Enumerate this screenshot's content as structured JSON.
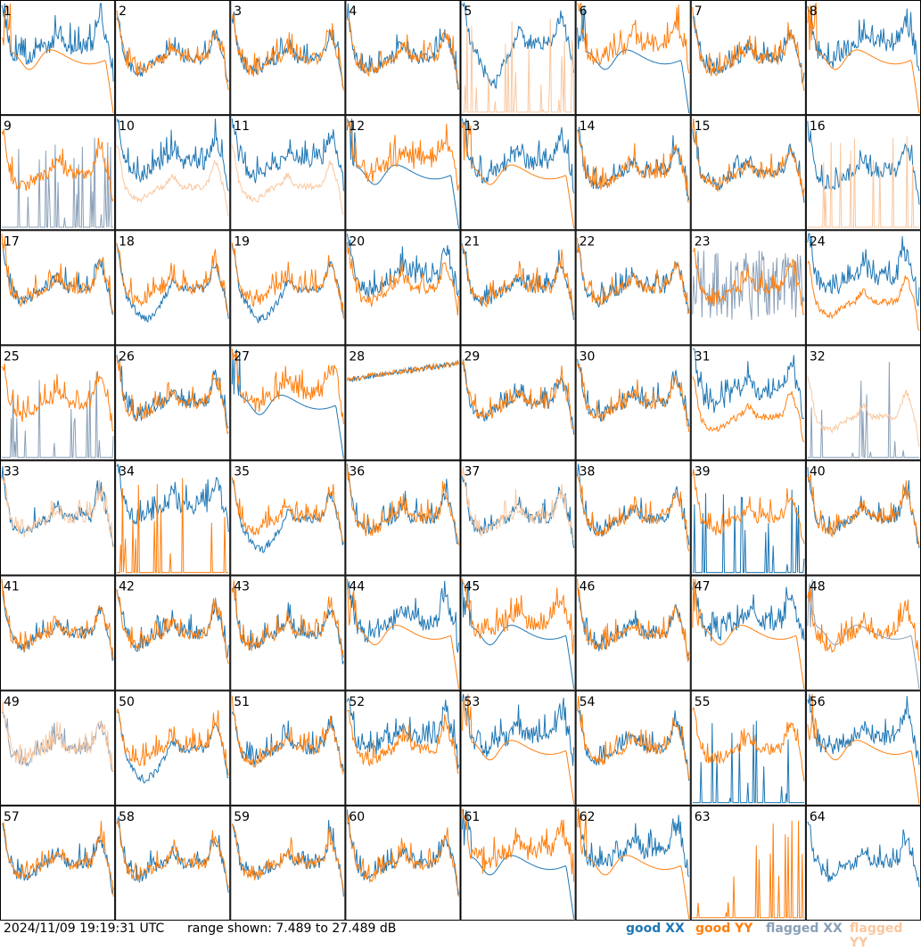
{
  "footer": {
    "timestamp": "2024/11/09 19:19:31 UTC",
    "range_text": "range shown: 7.489 to 27.489 dB"
  },
  "legend": [
    {
      "key": "good_xx",
      "label": "good XX",
      "color": "#1f77b4"
    },
    {
      "key": "good_yy",
      "label": "good YY",
      "color": "#ff7f0e"
    },
    {
      "key": "flagged_xx",
      "label": "flagged XX",
      "color": "#8aa0b8"
    },
    {
      "key": "flagged_yy",
      "label": "flagged YY",
      "color": "#f9c79f"
    }
  ],
  "chart_data": {
    "type": "line",
    "title": "",
    "xlabel": "",
    "ylabel": "",
    "ylim": [
      7.489,
      27.489
    ],
    "grid_rows": 8,
    "grid_cols": 8,
    "panels": [
      {
        "id": "1",
        "xx": "good",
        "yy": "good",
        "xx_shape": "normal_high",
        "yy_shape": "droop"
      },
      {
        "id": "2",
        "xx": "good",
        "yy": "good",
        "xx_shape": "normal",
        "yy_shape": "normal"
      },
      {
        "id": "3",
        "xx": "good",
        "yy": "good",
        "xx_shape": "normal",
        "yy_shape": "normal"
      },
      {
        "id": "4",
        "xx": "good",
        "yy": "good",
        "xx_shape": "normal",
        "yy_shape": "normal"
      },
      {
        "id": "5",
        "xx": "good",
        "yy": "flagged",
        "xx_shape": "dip_high",
        "yy_shape": "spikes"
      },
      {
        "id": "6",
        "xx": "good",
        "yy": "good",
        "xx_shape": "droop",
        "yy_shape": "normal_high"
      },
      {
        "id": "7",
        "xx": "good",
        "yy": "good",
        "xx_shape": "normal",
        "yy_shape": "normal"
      },
      {
        "id": "8",
        "xx": "good",
        "yy": "good",
        "xx_shape": "normal_high",
        "yy_shape": "droop"
      },
      {
        "id": "9",
        "xx": "flagged",
        "yy": "good",
        "xx_shape": "spikes",
        "yy_shape": "normal"
      },
      {
        "id": "10",
        "xx": "good",
        "yy": "flagged",
        "xx_shape": "normal_high",
        "yy_shape": "normal_low"
      },
      {
        "id": "11",
        "xx": "good",
        "yy": "flagged",
        "xx_shape": "normal_high",
        "yy_shape": "normal_low"
      },
      {
        "id": "12",
        "xx": "good",
        "yy": "good",
        "xx_shape": "droop",
        "yy_shape": "normal_high"
      },
      {
        "id": "13",
        "xx": "good",
        "yy": "good",
        "xx_shape": "normal_high",
        "yy_shape": "droop"
      },
      {
        "id": "14",
        "xx": "good",
        "yy": "good",
        "xx_shape": "normal",
        "yy_shape": "normal"
      },
      {
        "id": "15",
        "xx": "good",
        "yy": "good",
        "xx_shape": "normal",
        "yy_shape": "normal"
      },
      {
        "id": "16",
        "xx": "good",
        "yy": "flagged",
        "xx_shape": "normal",
        "yy_shape": "spikes"
      },
      {
        "id": "17",
        "xx": "good",
        "yy": "good",
        "xx_shape": "normal",
        "yy_shape": "normal"
      },
      {
        "id": "18",
        "xx": "good",
        "yy": "good",
        "xx_shape": "dip",
        "yy_shape": "normal"
      },
      {
        "id": "19",
        "xx": "good",
        "yy": "good",
        "xx_shape": "dip",
        "yy_shape": "normal"
      },
      {
        "id": "20",
        "xx": "good",
        "yy": "good",
        "xx_shape": "normal_high",
        "yy_shape": "normal"
      },
      {
        "id": "21",
        "xx": "good",
        "yy": "good",
        "xx_shape": "normal",
        "yy_shape": "normal"
      },
      {
        "id": "22",
        "xx": "good",
        "yy": "good",
        "xx_shape": "normal",
        "yy_shape": "normal"
      },
      {
        "id": "23",
        "xx": "flagged",
        "yy": "good",
        "xx_shape": "noise",
        "yy_shape": "normal"
      },
      {
        "id": "24",
        "xx": "good",
        "yy": "good",
        "xx_shape": "normal_high",
        "yy_shape": "normal_low"
      },
      {
        "id": "25",
        "xx": "flagged",
        "yy": "good",
        "xx_shape": "spikes",
        "yy_shape": "normal"
      },
      {
        "id": "26",
        "xx": "good",
        "yy": "good",
        "xx_shape": "normal",
        "yy_shape": "normal"
      },
      {
        "id": "27",
        "xx": "good",
        "yy": "good",
        "xx_shape": "droop",
        "yy_shape": "normal_high"
      },
      {
        "id": "28",
        "xx": "good",
        "yy": "good",
        "xx_shape": "flat_high",
        "yy_shape": "flat_high"
      },
      {
        "id": "29",
        "xx": "good",
        "yy": "good",
        "xx_shape": "normal",
        "yy_shape": "normal"
      },
      {
        "id": "30",
        "xx": "good",
        "yy": "good",
        "xx_shape": "normal",
        "yy_shape": "normal"
      },
      {
        "id": "31",
        "xx": "good",
        "yy": "good",
        "xx_shape": "normal_high",
        "yy_shape": "normal_low"
      },
      {
        "id": "32",
        "xx": "flagged",
        "yy": "flagged",
        "xx_shape": "spikes",
        "yy_shape": "normal_low"
      },
      {
        "id": "33",
        "xx": "good",
        "yy": "flagged",
        "xx_shape": "normal",
        "yy_shape": "normal"
      },
      {
        "id": "34",
        "xx": "good",
        "yy": "good",
        "xx_shape": "normal_high",
        "yy_shape": "spikes"
      },
      {
        "id": "35",
        "xx": "good",
        "yy": "good",
        "xx_shape": "dip",
        "yy_shape": "normal"
      },
      {
        "id": "36",
        "xx": "good",
        "yy": "good",
        "xx_shape": "normal",
        "yy_shape": "normal"
      },
      {
        "id": "37",
        "xx": "good",
        "yy": "flagged",
        "xx_shape": "normal",
        "yy_shape": "normal"
      },
      {
        "id": "38",
        "xx": "good",
        "yy": "good",
        "xx_shape": "normal",
        "yy_shape": "normal"
      },
      {
        "id": "39",
        "xx": "good",
        "yy": "good",
        "xx_shape": "spikes",
        "yy_shape": "normal"
      },
      {
        "id": "40",
        "xx": "good",
        "yy": "good",
        "xx_shape": "normal",
        "yy_shape": "normal"
      },
      {
        "id": "41",
        "xx": "good",
        "yy": "good",
        "xx_shape": "normal",
        "yy_shape": "normal"
      },
      {
        "id": "42",
        "xx": "good",
        "yy": "good",
        "xx_shape": "normal",
        "yy_shape": "normal"
      },
      {
        "id": "43",
        "xx": "good",
        "yy": "good",
        "xx_shape": "normal",
        "yy_shape": "normal"
      },
      {
        "id": "44",
        "xx": "good",
        "yy": "good",
        "xx_shape": "normal_high",
        "yy_shape": "droop"
      },
      {
        "id": "45",
        "xx": "good",
        "yy": "good",
        "xx_shape": "droop",
        "yy_shape": "normal_high"
      },
      {
        "id": "46",
        "xx": "good",
        "yy": "good",
        "xx_shape": "normal",
        "yy_shape": "normal"
      },
      {
        "id": "47",
        "xx": "good",
        "yy": "good",
        "xx_shape": "normal_high",
        "yy_shape": "droop"
      },
      {
        "id": "48",
        "xx": "flagged",
        "yy": "good",
        "xx_shape": "droop",
        "yy_shape": "normal"
      },
      {
        "id": "49",
        "xx": "flagged",
        "yy": "flagged",
        "xx_shape": "normal",
        "yy_shape": "normal"
      },
      {
        "id": "50",
        "xx": "good",
        "yy": "good",
        "xx_shape": "dip",
        "yy_shape": "normal"
      },
      {
        "id": "51",
        "xx": "good",
        "yy": "good",
        "xx_shape": "normal",
        "yy_shape": "normal"
      },
      {
        "id": "52",
        "xx": "good",
        "yy": "good",
        "xx_shape": "normal_high",
        "yy_shape": "normal"
      },
      {
        "id": "53",
        "xx": "good",
        "yy": "good",
        "xx_shape": "normal_high",
        "yy_shape": "droop"
      },
      {
        "id": "54",
        "xx": "good",
        "yy": "good",
        "xx_shape": "normal",
        "yy_shape": "normal"
      },
      {
        "id": "55",
        "xx": "good",
        "yy": "good",
        "xx_shape": "spikes",
        "yy_shape": "normal"
      },
      {
        "id": "56",
        "xx": "good",
        "yy": "good",
        "xx_shape": "normal_high",
        "yy_shape": "droop"
      },
      {
        "id": "57",
        "xx": "good",
        "yy": "good",
        "xx_shape": "normal",
        "yy_shape": "normal"
      },
      {
        "id": "58",
        "xx": "good",
        "yy": "good",
        "xx_shape": "normal",
        "yy_shape": "normal"
      },
      {
        "id": "59",
        "xx": "good",
        "yy": "good",
        "xx_shape": "normal",
        "yy_shape": "normal"
      },
      {
        "id": "60",
        "xx": "good",
        "yy": "good",
        "xx_shape": "normal",
        "yy_shape": "normal"
      },
      {
        "id": "61",
        "xx": "good",
        "yy": "good",
        "xx_shape": "droop",
        "yy_shape": "normal_high"
      },
      {
        "id": "62",
        "xx": "good",
        "yy": "good",
        "xx_shape": "normal_high",
        "yy_shape": "droop"
      },
      {
        "id": "63",
        "xx": "none",
        "yy": "good",
        "xx_shape": "none",
        "yy_shape": "spikes"
      },
      {
        "id": "64",
        "xx": "good",
        "yy": "none",
        "xx_shape": "normal",
        "yy_shape": "none"
      }
    ]
  }
}
